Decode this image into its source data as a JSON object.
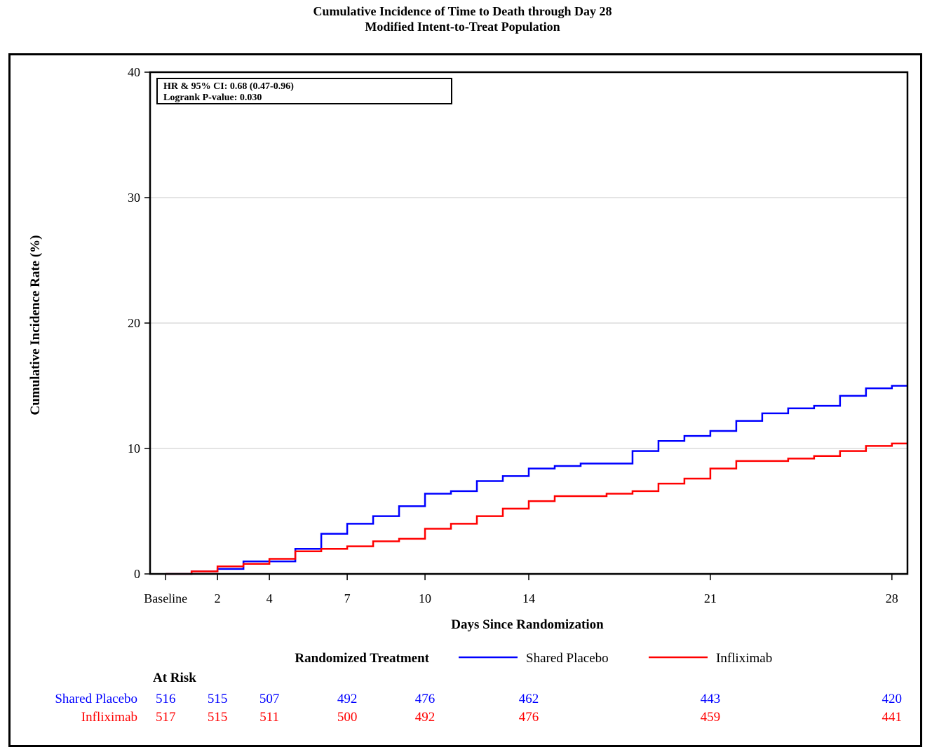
{
  "title": "Cumulative Incidence of Time to Death through Day 28",
  "subtitle": "Modified Intent-to-Treat Population",
  "stats_box": {
    "line1": "HR & 95% CI:  0.68 (0.47-0.96)",
    "line2": "Logrank P-value:  0.030"
  },
  "legend": {
    "title": "Randomized Treatment",
    "items": [
      {
        "label": "Shared Placebo",
        "color": "#0000ff"
      },
      {
        "label": "Infliximab",
        "color": "#ff0000"
      }
    ]
  },
  "at_risk": {
    "header": "At Risk",
    "rows": [
      {
        "label": "Shared Placebo",
        "color": "#0000ff",
        "values": [
          516,
          515,
          507,
          492,
          476,
          462,
          443,
          420
        ]
      },
      {
        "label": "Infliximab",
        "color": "#ff0000",
        "values": [
          517,
          515,
          511,
          500,
          492,
          476,
          459,
          441
        ]
      }
    ]
  },
  "chart_data": {
    "type": "line",
    "step": true,
    "title": "Cumulative Incidence of Time to Death through Day 28",
    "subtitle": "Modified Intent-to-Treat Population",
    "xlabel": "Days Since Randomization",
    "ylabel": "Cumulative Incidence Rate (%)",
    "xlim": [
      -0.6,
      28.6
    ],
    "ylim": [
      0,
      40
    ],
    "xticks": [
      0,
      2,
      4,
      7,
      10,
      14,
      21,
      28
    ],
    "xtick_labels": [
      "Baseline",
      "2",
      "4",
      "7",
      "10",
      "14",
      "21",
      "28"
    ],
    "yticks": [
      0,
      10,
      20,
      30,
      40
    ],
    "grid": "horizontal",
    "series": [
      {
        "name": "Shared Placebo",
        "color": "#0000ff",
        "x": [
          0,
          1,
          2,
          3,
          4,
          5,
          6,
          7,
          8,
          9,
          10,
          11,
          12,
          13,
          14,
          15,
          16,
          17,
          18,
          19,
          20,
          21,
          22,
          23,
          24,
          25,
          26,
          27,
          28
        ],
        "y": [
          0,
          0.2,
          0.4,
          1.0,
          1.0,
          2.0,
          3.2,
          4.0,
          4.6,
          5.4,
          6.4,
          6.6,
          7.4,
          7.8,
          8.4,
          8.6,
          8.8,
          8.8,
          9.8,
          10.6,
          11.0,
          11.4,
          12.2,
          12.8,
          13.2,
          13.4,
          14.2,
          14.8,
          15.0
        ]
      },
      {
        "name": "Infliximab",
        "color": "#ff0000",
        "x": [
          0,
          1,
          2,
          3,
          4,
          5,
          6,
          7,
          8,
          9,
          10,
          11,
          12,
          13,
          14,
          15,
          16,
          17,
          18,
          19,
          20,
          21,
          22,
          23,
          24,
          25,
          26,
          27,
          28
        ],
        "y": [
          0,
          0.2,
          0.6,
          0.8,
          1.2,
          1.8,
          2.0,
          2.2,
          2.6,
          2.8,
          3.6,
          4.0,
          4.6,
          5.2,
          5.8,
          6.2,
          6.2,
          6.4,
          6.6,
          7.2,
          7.6,
          8.4,
          9.0,
          9.0,
          9.2,
          9.4,
          9.8,
          10.2,
          10.4
        ]
      }
    ]
  }
}
